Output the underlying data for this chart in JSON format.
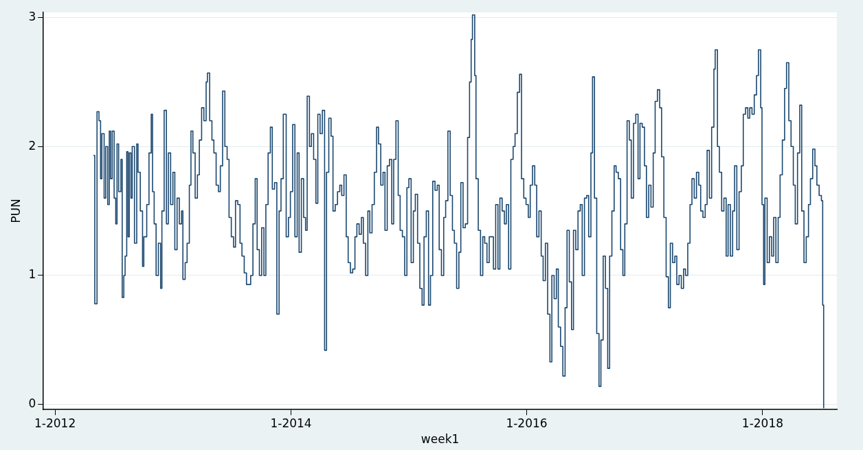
{
  "chart_data": {
    "type": "step",
    "xlabel": "week1",
    "ylabel": "PUN",
    "xlim": [
      "2011-11-26",
      "2018-08-19"
    ],
    "xticks": [
      {
        "value": "2012-01-01",
        "label": "1-2012"
      },
      {
        "value": "2014-01-01",
        "label": "1-2014"
      },
      {
        "value": "2016-01-01",
        "label": "1-2016"
      },
      {
        "value": "2018-01-01",
        "label": "1-2018"
      }
    ],
    "ylim": [
      -0.04,
      3.04
    ],
    "yticks": [
      0,
      1,
      2,
      3
    ],
    "grid": "y",
    "legend": false,
    "series": [
      {
        "color": "#1a476f",
        "x": [
          "2012-04-29",
          "2012-05-03",
          "2012-05-10",
          "2012-05-16",
          "2012-05-21",
          "2012-05-25",
          "2012-06-01",
          "2012-06-06",
          "2012-06-12",
          "2012-06-17",
          "2012-06-21",
          "2012-06-26",
          "2012-07-02",
          "2012-07-07",
          "2012-07-11",
          "2012-07-16",
          "2012-07-23",
          "2012-07-27",
          "2012-08-01",
          "2012-08-05",
          "2012-08-10",
          "2012-08-14",
          "2012-08-18",
          "2012-08-23",
          "2012-08-27",
          "2012-09-03",
          "2012-09-10",
          "2012-09-14",
          "2012-09-21",
          "2012-09-28",
          "2012-10-02",
          "2012-10-11",
          "2012-10-18",
          "2012-10-25",
          "2012-10-29",
          "2012-11-03",
          "2012-11-09",
          "2012-11-16",
          "2012-11-23",
          "2012-11-27",
          "2012-12-04",
          "2012-12-11",
          "2012-12-17",
          "2012-12-24",
          "2012-12-31",
          "2013-01-06",
          "2013-01-13",
          "2013-01-20",
          "2013-01-27",
          "2013-01-31",
          "2013-02-07",
          "2013-02-13",
          "2013-02-20",
          "2013-02-25",
          "2013-03-03",
          "2013-03-10",
          "2013-03-17",
          "2013-03-23",
          "2013-03-30",
          "2013-04-06",
          "2013-04-13",
          "2013-04-17",
          "2013-04-24",
          "2013-05-01",
          "2013-05-07",
          "2013-05-14",
          "2013-05-21",
          "2013-05-27",
          "2013-06-03",
          "2013-06-10",
          "2013-06-17",
          "2013-06-23",
          "2013-06-30",
          "2013-07-07",
          "2013-07-13",
          "2013-07-20",
          "2013-07-27",
          "2013-08-02",
          "2013-08-09",
          "2013-08-16",
          "2013-08-23",
          "2013-08-29",
          "2013-09-05",
          "2013-09-12",
          "2013-09-18",
          "2013-09-25",
          "2013-10-02",
          "2013-10-09",
          "2013-10-15",
          "2013-10-22",
          "2013-10-29",
          "2013-11-04",
          "2013-11-11",
          "2013-11-18",
          "2013-11-25",
          "2013-12-01",
          "2013-12-08",
          "2013-12-17",
          "2013-12-24",
          "2013-12-30",
          "2014-01-06",
          "2014-01-13",
          "2014-01-20",
          "2014-01-26",
          "2014-02-02",
          "2014-02-09",
          "2014-02-15",
          "2014-02-20",
          "2014-02-27",
          "2014-03-05",
          "2014-03-12",
          "2014-03-19",
          "2014-03-25",
          "2014-04-01",
          "2014-04-08",
          "2014-04-15",
          "2014-04-21",
          "2014-04-28",
          "2014-05-05",
          "2014-05-11",
          "2014-05-18",
          "2014-05-25",
          "2014-06-01",
          "2014-06-07",
          "2014-06-14",
          "2014-06-21",
          "2014-06-27",
          "2014-07-04",
          "2014-07-11",
          "2014-07-18",
          "2014-07-24",
          "2014-07-31",
          "2014-08-07",
          "2014-08-13",
          "2014-08-20",
          "2014-08-27",
          "2014-09-02",
          "2014-09-09",
          "2014-09-16",
          "2014-09-23",
          "2014-09-29",
          "2014-10-06",
          "2014-10-13",
          "2014-10-19",
          "2014-10-26",
          "2014-11-02",
          "2014-11-09",
          "2014-11-15",
          "2014-11-22",
          "2014-11-29",
          "2014-12-05",
          "2014-12-12",
          "2014-12-19",
          "2014-12-26",
          "2015-01-01",
          "2015-01-08",
          "2015-01-15",
          "2015-01-21",
          "2015-01-28",
          "2015-02-04",
          "2015-02-11",
          "2015-02-17",
          "2015-02-24",
          "2015-03-03",
          "2015-03-09",
          "2015-03-16",
          "2015-03-23",
          "2015-03-30",
          "2015-04-05",
          "2015-04-12",
          "2015-04-19",
          "2015-04-25",
          "2015-05-02",
          "2015-05-09",
          "2015-05-16",
          "2015-05-22",
          "2015-05-29",
          "2015-06-05",
          "2015-06-11",
          "2015-06-18",
          "2015-06-25",
          "2015-07-02",
          "2015-07-08",
          "2015-07-13",
          "2015-07-17",
          "2015-07-24",
          "2015-07-28",
          "2015-08-04",
          "2015-08-11",
          "2015-08-18",
          "2015-08-24",
          "2015-08-31",
          "2015-09-07",
          "2015-09-13",
          "2015-09-20",
          "2015-09-27",
          "2015-10-04",
          "2015-10-10",
          "2015-10-17",
          "2015-10-24",
          "2015-10-30",
          "2015-11-06",
          "2015-11-13",
          "2015-11-20",
          "2015-11-26",
          "2015-12-03",
          "2015-12-10",
          "2015-12-16",
          "2015-12-23",
          "2015-12-30",
          "2016-01-06",
          "2016-01-12",
          "2016-01-19",
          "2016-01-26",
          "2016-02-01",
          "2016-02-08",
          "2016-02-15",
          "2016-02-21",
          "2016-02-28",
          "2016-03-06",
          "2016-03-13",
          "2016-03-19",
          "2016-03-26",
          "2016-04-02",
          "2016-04-08",
          "2016-04-15",
          "2016-04-22",
          "2016-04-29",
          "2016-05-05",
          "2016-05-12",
          "2016-05-19",
          "2016-05-25",
          "2016-06-01",
          "2016-06-08",
          "2016-06-15",
          "2016-06-21",
          "2016-06-28",
          "2016-07-05",
          "2016-07-11",
          "2016-07-18",
          "2016-07-23",
          "2016-07-29",
          "2016-08-05",
          "2016-08-12",
          "2016-08-18",
          "2016-08-25",
          "2016-09-01",
          "2016-09-08",
          "2016-09-14",
          "2016-09-21",
          "2016-09-28",
          "2016-10-04",
          "2016-10-11",
          "2016-10-18",
          "2016-10-25",
          "2016-10-31",
          "2016-11-07",
          "2016-11-14",
          "2016-11-20",
          "2016-11-27",
          "2016-12-04",
          "2016-12-11",
          "2016-12-17",
          "2016-12-24",
          "2016-12-31",
          "2017-01-06",
          "2017-01-13",
          "2017-01-20",
          "2017-01-27",
          "2017-02-02",
          "2017-02-09",
          "2017-02-16",
          "2017-02-22",
          "2017-03-01",
          "2017-03-08",
          "2017-03-15",
          "2017-03-21",
          "2017-03-28",
          "2017-04-04",
          "2017-04-10",
          "2017-04-17",
          "2017-04-24",
          "2017-05-01",
          "2017-05-07",
          "2017-05-14",
          "2017-05-21",
          "2017-05-27",
          "2017-06-03",
          "2017-06-10",
          "2017-06-17",
          "2017-06-23",
          "2017-06-30",
          "2017-07-07",
          "2017-07-13",
          "2017-07-20",
          "2017-07-27",
          "2017-08-03",
          "2017-08-07",
          "2017-08-14",
          "2017-08-20",
          "2017-08-27",
          "2017-09-03",
          "2017-09-10",
          "2017-09-16",
          "2017-09-23",
          "2017-09-30",
          "2017-10-06",
          "2017-10-13",
          "2017-10-20",
          "2017-10-27",
          "2017-11-02",
          "2017-11-09",
          "2017-11-16",
          "2017-11-22",
          "2017-11-29",
          "2017-12-06",
          "2017-12-13",
          "2017-12-19",
          "2017-12-26",
          "2017-12-30",
          "2018-01-04",
          "2018-01-08",
          "2018-01-15",
          "2018-01-22",
          "2018-01-29",
          "2018-02-04",
          "2018-02-11",
          "2018-02-18",
          "2018-02-24",
          "2018-03-03",
          "2018-03-10",
          "2018-03-16",
          "2018-03-23",
          "2018-03-30",
          "2018-04-06",
          "2018-04-12",
          "2018-04-19",
          "2018-04-26",
          "2018-05-02",
          "2018-05-09",
          "2018-05-16",
          "2018-05-23",
          "2018-05-29",
          "2018-06-05",
          "2018-06-12",
          "2018-06-18",
          "2018-06-25",
          "2018-07-02",
          "2018-07-06",
          "2018-07-09"
        ],
        "values": [
          1.93,
          0.78,
          2.27,
          2.2,
          1.75,
          2.1,
          1.6,
          2.0,
          1.55,
          2.12,
          1.75,
          2.12,
          1.6,
          1.4,
          2.02,
          1.65,
          1.9,
          0.83,
          1.0,
          1.15,
          1.96,
          1.3,
          1.95,
          1.6,
          2.0,
          1.25,
          2.02,
          1.8,
          1.5,
          1.07,
          1.3,
          1.55,
          1.95,
          2.25,
          1.65,
          1.4,
          1.0,
          1.25,
          0.9,
          1.5,
          2.28,
          1.4,
          1.95,
          1.55,
          1.8,
          1.2,
          1.6,
          1.4,
          1.5,
          0.97,
          1.1,
          1.25,
          1.7,
          2.12,
          1.95,
          1.6,
          1.78,
          2.05,
          2.3,
          2.2,
          2.5,
          2.57,
          2.2,
          2.05,
          1.95,
          1.7,
          1.65,
          1.85,
          2.43,
          2.0,
          1.9,
          1.45,
          1.3,
          1.22,
          1.58,
          1.55,
          1.25,
          1.15,
          1.02,
          0.93,
          0.93,
          1.0,
          1.4,
          1.75,
          1.2,
          1.0,
          1.37,
          1.0,
          1.55,
          1.95,
          2.15,
          1.67,
          1.72,
          0.7,
          1.5,
          1.75,
          2.25,
          1.3,
          1.45,
          1.65,
          2.17,
          1.3,
          1.95,
          1.18,
          1.75,
          1.45,
          1.35,
          2.39,
          2.0,
          2.1,
          1.9,
          1.56,
          2.25,
          2.1,
          2.28,
          0.42,
          1.8,
          2.22,
          2.08,
          1.5,
          1.55,
          1.65,
          1.7,
          1.62,
          1.78,
          1.3,
          1.1,
          1.02,
          1.05,
          1.3,
          1.4,
          1.32,
          1.45,
          1.25,
          1.0,
          1.5,
          1.33,
          1.55,
          1.8,
          2.15,
          2.02,
          1.7,
          1.8,
          1.35,
          1.85,
          1.9,
          1.4,
          1.9,
          2.2,
          1.62,
          1.35,
          1.3,
          1.0,
          1.68,
          1.75,
          1.1,
          1.5,
          1.63,
          1.25,
          0.9,
          0.77,
          1.3,
          1.5,
          0.77,
          1.0,
          1.73,
          1.66,
          1.7,
          1.2,
          1.0,
          1.45,
          1.58,
          2.12,
          1.62,
          1.35,
          1.25,
          0.9,
          1.18,
          1.72,
          1.37,
          1.4,
          2.07,
          2.5,
          2.83,
          3.02,
          2.55,
          1.75,
          1.35,
          1.0,
          1.3,
          1.25,
          1.1,
          1.3,
          1.3,
          1.05,
          1.55,
          1.05,
          1.6,
          1.5,
          1.4,
          1.55,
          1.05,
          1.9,
          2.0,
          2.1,
          2.42,
          2.56,
          1.75,
          1.6,
          1.55,
          1.45,
          1.7,
          1.85,
          1.7,
          1.3,
          1.5,
          1.15,
          0.96,
          1.25,
          0.7,
          0.33,
          1.0,
          0.82,
          1.05,
          0.6,
          0.45,
          0.22,
          0.75,
          1.35,
          0.95,
          0.58,
          1.35,
          1.2,
          1.5,
          1.55,
          1.0,
          1.6,
          1.62,
          1.3,
          1.95,
          2.54,
          1.6,
          0.55,
          0.14,
          0.5,
          1.15,
          0.9,
          0.28,
          1.15,
          1.5,
          1.85,
          1.8,
          1.75,
          1.2,
          1.0,
          1.4,
          2.2,
          2.05,
          1.6,
          2.18,
          2.25,
          1.75,
          2.18,
          2.15,
          1.85,
          1.45,
          1.7,
          1.53,
          1.95,
          2.35,
          2.44,
          2.3,
          1.92,
          1.45,
          0.99,
          0.75,
          1.25,
          1.1,
          1.15,
          0.93,
          1.0,
          0.9,
          1.05,
          1.0,
          1.25,
          1.55,
          1.75,
          1.6,
          1.8,
          1.7,
          1.5,
          1.45,
          1.55,
          1.97,
          1.6,
          2.15,
          2.6,
          2.75,
          2.0,
          1.8,
          1.5,
          1.6,
          1.15,
          1.55,
          1.15,
          1.5,
          1.85,
          1.2,
          1.65,
          1.85,
          2.25,
          2.3,
          2.22,
          2.3,
          2.25,
          2.4,
          2.55,
          2.75,
          2.3,
          1.55,
          0.93,
          1.6,
          1.1,
          1.3,
          1.15,
          1.45,
          1.1,
          1.45,
          1.78,
          2.05,
          2.45,
          2.65,
          2.2,
          2.0,
          1.7,
          1.4,
          1.95,
          2.32,
          1.5,
          1.1,
          1.3,
          1.55,
          1.75,
          1.98,
          1.85,
          1.7,
          1.62,
          1.58,
          0.77,
          -0.03
        ]
      }
    ]
  }
}
